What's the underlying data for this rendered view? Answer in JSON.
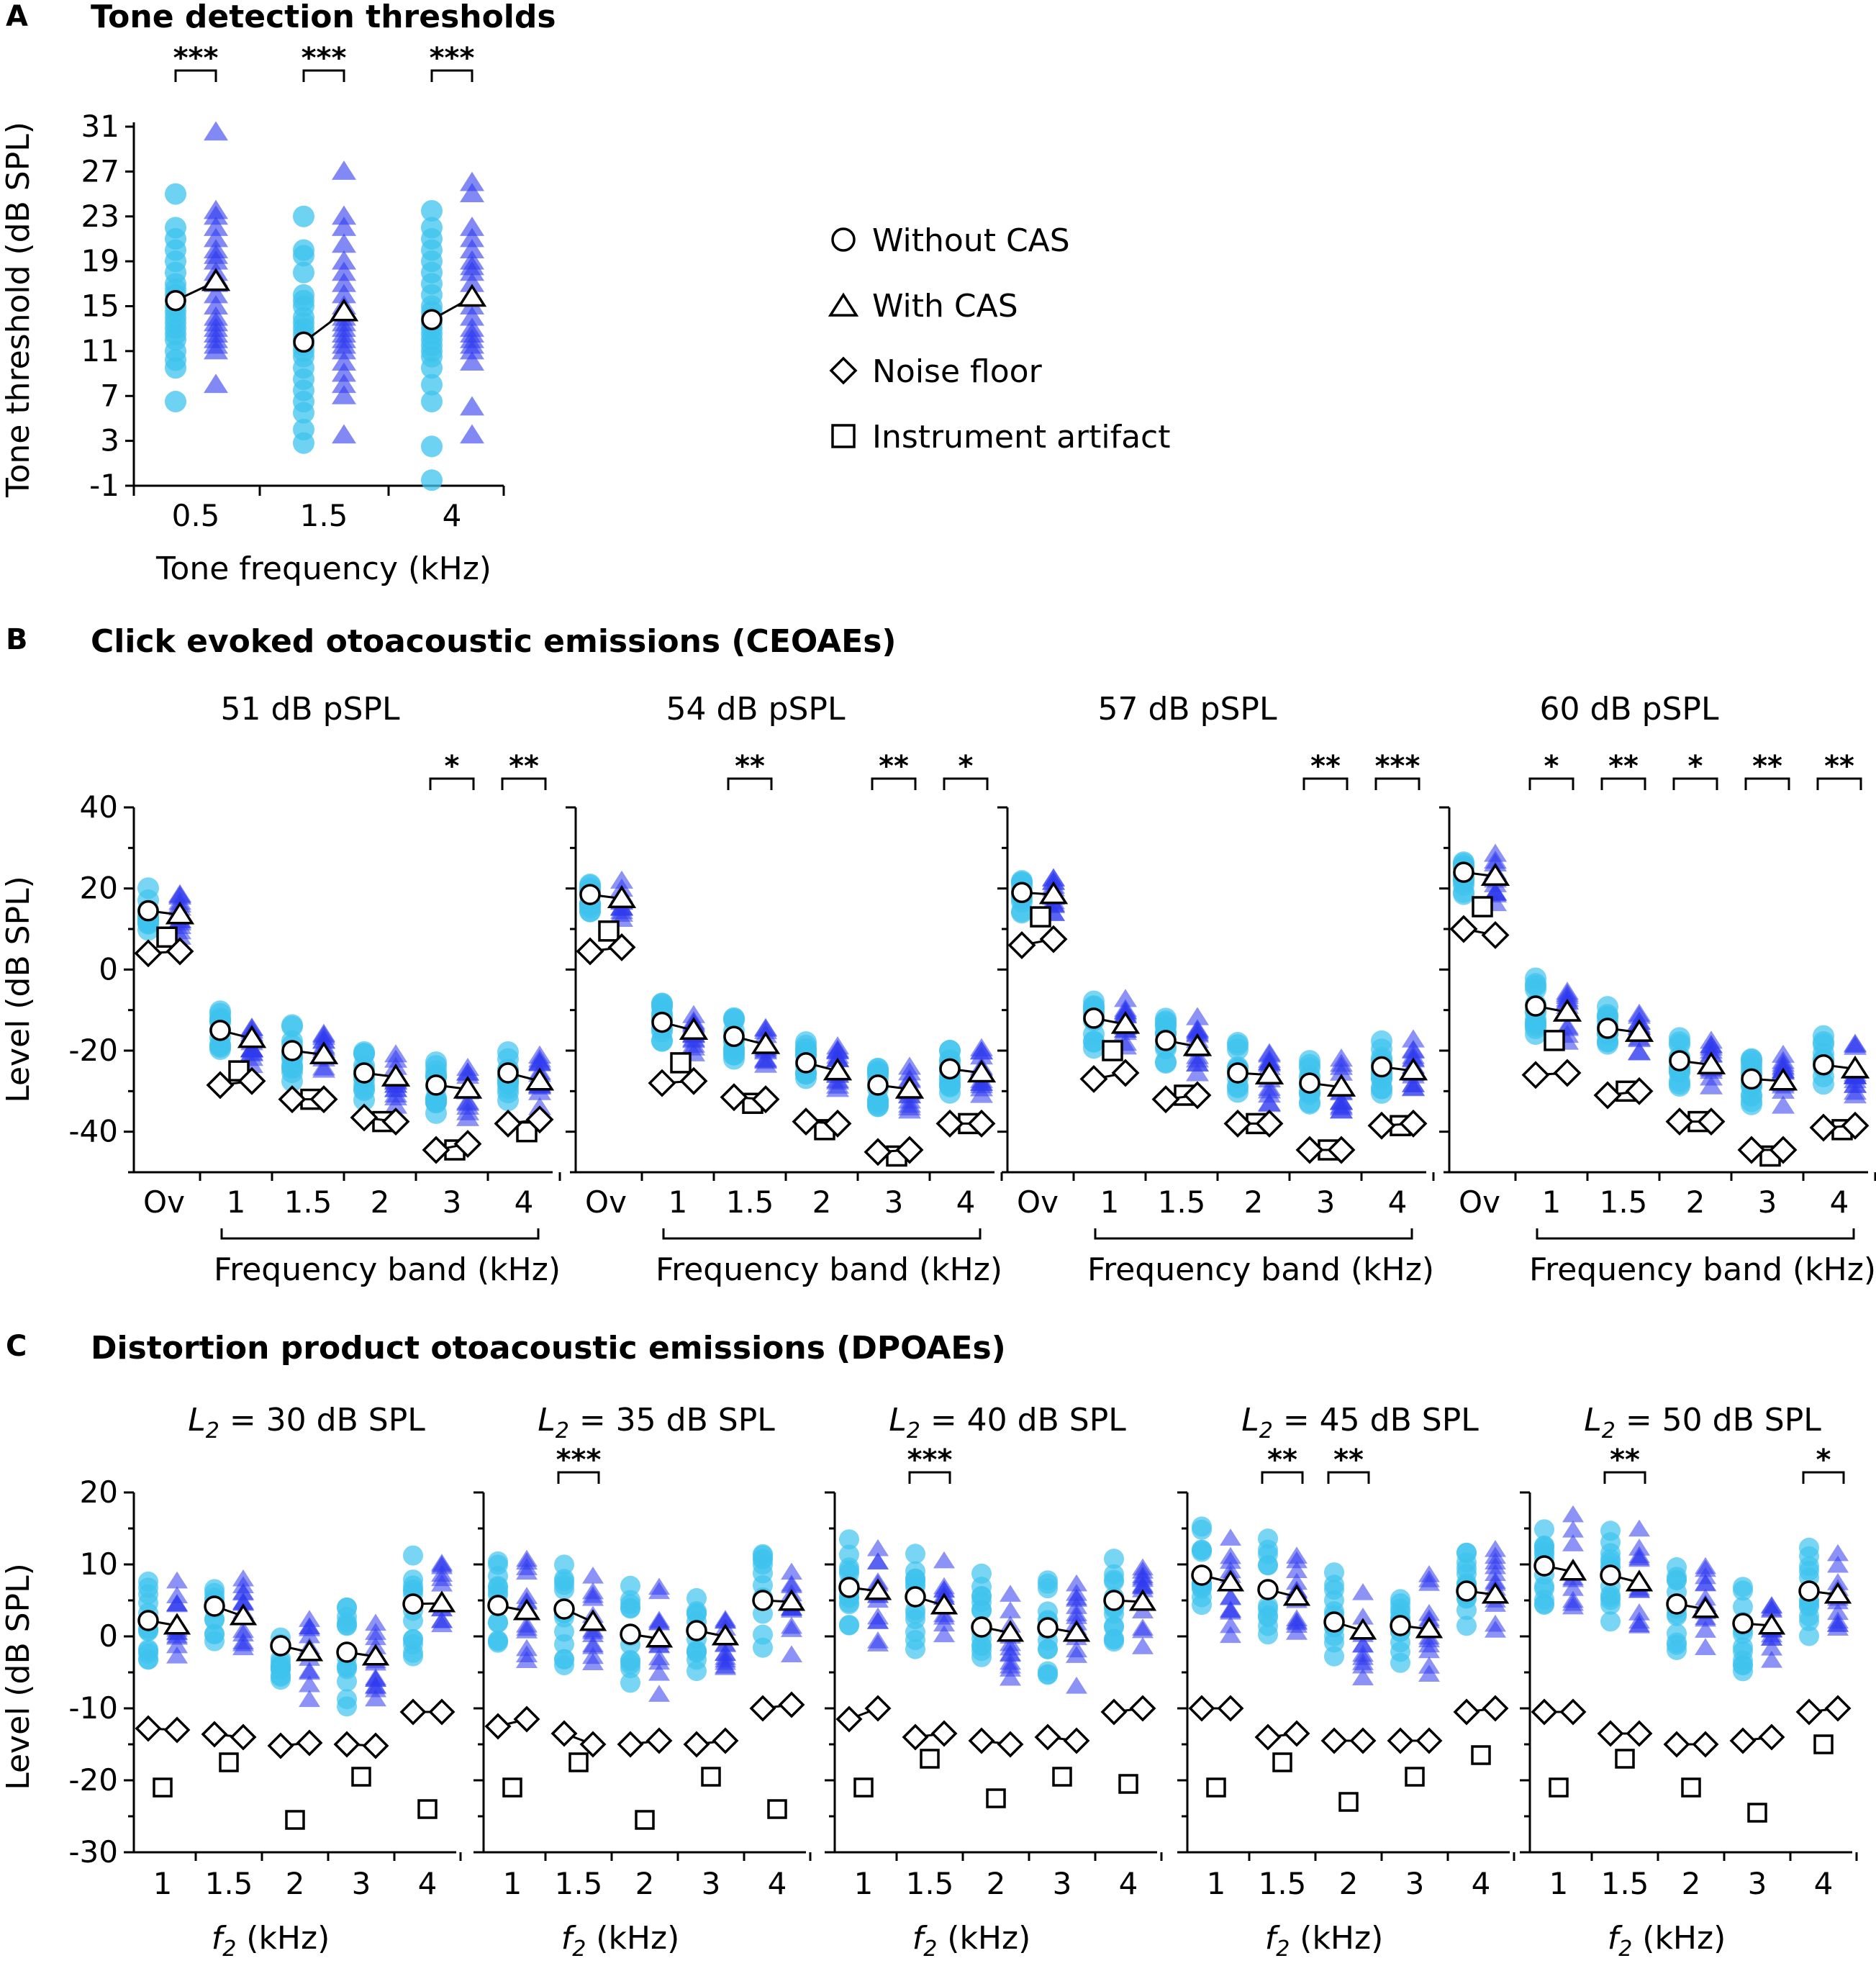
{
  "colors": {
    "without_cas_indiv": "#3ec3ee",
    "with_cas_indiv": "#2f3aef",
    "mean_fill": "#ffffff",
    "mean_stroke": "#000000"
  },
  "legend": {
    "items": [
      {
        "marker": "circle",
        "label": "Without CAS"
      },
      {
        "marker": "triangle",
        "label": "With CAS"
      },
      {
        "marker": "diamond",
        "label": "Noise floor"
      },
      {
        "marker": "square",
        "label": "Instrument artifact"
      }
    ]
  },
  "chart_data": [
    {
      "panel": "A",
      "type": "scatter",
      "title": "Tone detection thresholds",
      "xlabel": "Tone frequency (kHz)",
      "ylabel": "Tone threshold (dB SPL)",
      "ylim": [
        -1,
        31
      ],
      "yticks": [
        -1,
        3,
        7,
        11,
        15,
        19,
        23,
        27,
        31
      ],
      "categories": [
        "0.5",
        "1.5",
        "4"
      ],
      "series": [
        {
          "name": "Without CAS",
          "marker": "circle",
          "values": [
            15.5,
            11.8,
            13.8
          ]
        },
        {
          "name": "With CAS",
          "marker": "triangle",
          "values": [
            17.2,
            14.5,
            15.8
          ]
        }
      ],
      "individual": {
        "without": [
          [
            6.5,
            9.5,
            10.2,
            11,
            12,
            12.5,
            13,
            13.5,
            14,
            14.5,
            15,
            15.5,
            16,
            16.5,
            17,
            18,
            19,
            20,
            21,
            22,
            25
          ],
          [
            2.8,
            4,
            5.5,
            6.5,
            7.5,
            8.5,
            9.5,
            10.5,
            11,
            11.5,
            12,
            12.5,
            13,
            13.5,
            14,
            15,
            15.5,
            16,
            18,
            19.5,
            20,
            23
          ],
          [
            -0.5,
            2.5,
            6.5,
            8,
            9.5,
            10.5,
            11,
            11.5,
            12,
            12.5,
            13,
            13.5,
            14,
            14.5,
            15,
            16,
            17,
            18,
            19,
            20,
            21,
            22,
            23.5
          ]
        ],
        "with": [
          [
            8,
            11,
            11.5,
            12,
            12.5,
            13,
            13.5,
            14,
            15,
            16,
            17,
            17.5,
            18,
            19,
            19.5,
            20,
            21,
            22,
            23,
            23.5,
            30.5
          ],
          [
            3.5,
            7,
            8,
            9,
            10,
            11,
            11.5,
            12,
            12.5,
            13,
            13.5,
            14,
            15,
            16,
            17,
            18,
            19,
            20.5,
            22,
            23,
            27
          ],
          [
            3.5,
            6,
            10,
            11,
            11.5,
            12,
            12.5,
            13,
            14,
            15,
            16,
            17,
            18,
            18.5,
            19,
            20,
            21,
            22,
            25,
            26
          ]
        ]
      },
      "significance": [
        "***",
        "***",
        "***"
      ]
    },
    {
      "panel": "B",
      "type": "scatter",
      "title": "Click evoked otoacoustic emissions (CEOAEs)",
      "ylabel": "Level (dB SPL)",
      "xlabel": "Frequency band (kHz)",
      "ylim": [
        -50,
        40
      ],
      "yticks": [
        40,
        20,
        0,
        -20,
        -40
      ],
      "categories": [
        "Ov",
        "1",
        "1.5",
        "2",
        "3",
        "4"
      ],
      "subpanels": [
        {
          "label": "51 dB pSPL",
          "without": [
            14.5,
            -15,
            -20,
            -25.5,
            -28.5,
            -25.5
          ],
          "with": [
            13.5,
            -17,
            -21,
            -26.5,
            -29.5,
            -27.5
          ],
          "noise_floor": [
            [
              4,
              4.5
            ],
            [
              -28.5,
              -27.5
            ],
            [
              -32,
              -32
            ],
            [
              -36.5,
              -37.5
            ],
            [
              -44.5,
              -43
            ],
            [
              -38,
              -37
            ]
          ],
          "artifact": [
            8,
            -25,
            -32,
            -37.5,
            -44.5,
            -40
          ],
          "significance": [
            {
              "band": 4,
              "text": "*"
            },
            {
              "band": 5,
              "text": "**"
            }
          ]
        },
        {
          "label": "54 dB pSPL",
          "without": [
            18.5,
            -13,
            -16.5,
            -23,
            -28.5,
            -24.5
          ],
          "with": [
            17.5,
            -15,
            -18.5,
            -25,
            -29.5,
            -25.5
          ],
          "noise_floor": [
            [
              4.5,
              5.5
            ],
            [
              -28,
              -27.5
            ],
            [
              -31.5,
              -32
            ],
            [
              -37.5,
              -38
            ],
            [
              -45,
              -44.5
            ],
            [
              -38,
              -38
            ]
          ],
          "artifact": [
            9.5,
            -23,
            -33,
            -39.5,
            -46,
            -38
          ],
          "significance": [
            {
              "band": 2,
              "text": "**"
            },
            {
              "band": 4,
              "text": "**"
            },
            {
              "band": 5,
              "text": "*"
            }
          ]
        },
        {
          "label": "57 dB pSPL",
          "without": [
            19,
            -12,
            -17.5,
            -25.5,
            -28,
            -24
          ],
          "with": [
            18.5,
            -13.5,
            -19,
            -26,
            -29,
            -25
          ],
          "noise_floor": [
            [
              6,
              7.5
            ],
            [
              -27,
              -25.5
            ],
            [
              -32,
              -31
            ],
            [
              -38,
              -38
            ],
            [
              -44.5,
              -44.5
            ],
            [
              -38.5,
              -38
            ]
          ],
          "artifact": [
            13,
            -20,
            -31,
            -38,
            -44.5,
            -38.5
          ],
          "significance": [
            {
              "band": 4,
              "text": "**"
            },
            {
              "band": 5,
              "text": "***"
            }
          ]
        },
        {
          "label": "60 dB pSPL",
          "without": [
            24,
            -9,
            -14.5,
            -22.5,
            -27,
            -23.5
          ],
          "with": [
            23,
            -10.5,
            -15.5,
            -23.5,
            -27.5,
            -24.5
          ],
          "noise_floor": [
            [
              10,
              8.5
            ],
            [
              -26,
              -25.5
            ],
            [
              -31,
              -30
            ],
            [
              -37.5,
              -37.5
            ],
            [
              -44.5,
              -44.5
            ],
            [
              -39,
              -38.5
            ]
          ],
          "artifact": [
            15.5,
            -17.5,
            -30,
            -37.5,
            -46,
            -39.5
          ],
          "significance": [
            {
              "band": 1,
              "text": "*"
            },
            {
              "band": 2,
              "text": "**"
            },
            {
              "band": 3,
              "text": "*"
            },
            {
              "band": 4,
              "text": "**"
            },
            {
              "band": 5,
              "text": "**"
            }
          ]
        }
      ]
    },
    {
      "panel": "C",
      "type": "scatter",
      "title": "Distortion product otoacoustic emissions (DPOAEs)",
      "ylabel": "Level (dB SPL)",
      "xlabel": "f2 (kHz)",
      "ylim": [
        -30,
        20
      ],
      "yticks": [
        20,
        10,
        0,
        -10,
        -20,
        -30
      ],
      "categories": [
        "1",
        "1.5",
        "2",
        "3",
        "4"
      ],
      "subpanels": [
        {
          "label": "L2 = 30 dB SPL",
          "without": [
            2.2,
            4.2,
            -1.3,
            -2.2,
            4.5
          ],
          "with": [
            1.5,
            2.8,
            -2.2,
            -2.8,
            4.6
          ],
          "noise_floor": [
            [
              -12.8,
              -13
            ],
            [
              -13.6,
              -14
            ],
            [
              -15.2,
              -14.8
            ],
            [
              -15,
              -15.2
            ],
            [
              -10.5,
              -10.5
            ]
          ],
          "artifact": [
            -21,
            -17.5,
            -25.5,
            -19.5,
            -24
          ],
          "significance": []
        },
        {
          "label": "L2 = 35 dB SPL",
          "without": [
            4.3,
            3.8,
            0.3,
            0.8,
            5
          ],
          "with": [
            3.5,
            2,
            -0.3,
            0,
            4.8
          ],
          "noise_floor": [
            [
              -12.5,
              -11.5
            ],
            [
              -13.5,
              -15
            ],
            [
              -15,
              -14.5
            ],
            [
              -15,
              -14.5
            ],
            [
              -10,
              -9.5
            ]
          ],
          "artifact": [
            -21,
            -17.5,
            -25.5,
            -19.5,
            -24
          ],
          "significance": [
            {
              "band": 1,
              "text": "***"
            }
          ]
        },
        {
          "label": "L2 = 40 dB SPL",
          "without": [
            6.8,
            5.5,
            1.3,
            1.2,
            5
          ],
          "with": [
            6.3,
            4.3,
            0.5,
            0.5,
            4.8
          ],
          "noise_floor": [
            [
              -11.5,
              -10
            ],
            [
              -14,
              -13.5
            ],
            [
              -14.5,
              -15
            ],
            [
              -14,
              -14.5
            ],
            [
              -10.5,
              -10
            ]
          ],
          "artifact": [
            -21,
            -17,
            -22.5,
            -19.5,
            -20.5
          ],
          "significance": [
            {
              "band": 1,
              "text": "***"
            }
          ]
        },
        {
          "label": "L2 = 45 dB SPL",
          "without": [
            8.5,
            6.5,
            2,
            1.5,
            6.3
          ],
          "with": [
            7.5,
            5.5,
            0.8,
            1,
            5.8
          ],
          "noise_floor": [
            [
              -10,
              -10
            ],
            [
              -14,
              -13.5
            ],
            [
              -14.5,
              -14.5
            ],
            [
              -14.5,
              -14.5
            ],
            [
              -10.5,
              -10
            ]
          ],
          "artifact": [
            -21,
            -17.5,
            -23,
            -19.5,
            -16.5
          ],
          "significance": [
            {
              "band": 1,
              "text": "**"
            },
            {
              "band": 2,
              "text": "**"
            }
          ]
        },
        {
          "label": "L2 = 50 dB SPL",
          "without": [
            9.8,
            8.5,
            4.5,
            1.8,
            6.3
          ],
          "with": [
            9,
            7.5,
            3.8,
            1.5,
            5.8
          ],
          "noise_floor": [
            [
              -10.5,
              -10.5
            ],
            [
              -13.5,
              -13.5
            ],
            [
              -15,
              -15
            ],
            [
              -14.5,
              -14
            ],
            [
              -10.5,
              -10
            ]
          ],
          "artifact": [
            -21,
            -17,
            -21,
            -24.5,
            -15
          ],
          "significance": [
            {
              "band": 1,
              "text": "**"
            },
            {
              "band": 4,
              "text": "*"
            }
          ]
        }
      ]
    }
  ],
  "labels": {
    "panel_a": "A",
    "panel_b": "B",
    "panel_c": "C",
    "title_a": "Tone detection thresholds",
    "title_b": "Click evoked otoacoustic emissions (CEOAEs)",
    "title_c": "Distortion product otoacoustic emissions (DPOAEs)",
    "a_xlabel": "Tone frequency (kHz)",
    "a_ylabel": "Tone threshold (dB SPL)",
    "b_ylabel": "Level (dB SPL)",
    "b_xlabel": "Frequency band (kHz)",
    "c_ylabel": "Level (dB SPL)",
    "c_xlabel_var": "f",
    "c_xlabel_sub": "2",
    "c_xlabel_unit": " (kHz)",
    "c_title_var": "L",
    "c_title_sub": "2",
    "c_title_rest": [
      " = 30 dB SPL",
      " = 35 dB SPL",
      " = 40 dB SPL",
      " = 45 dB SPL",
      " = 50 dB SPL"
    ]
  }
}
